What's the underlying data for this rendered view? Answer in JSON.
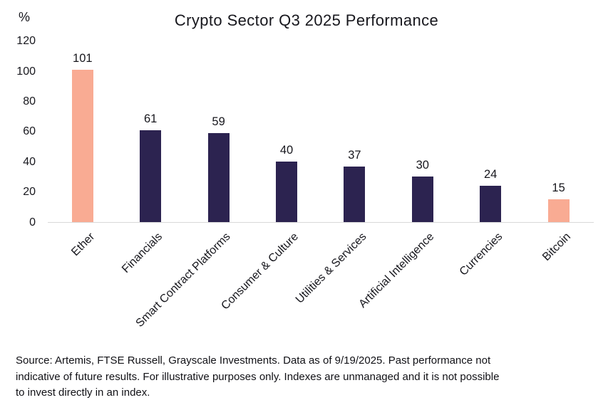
{
  "chart_data": {
    "type": "bar",
    "title": "Crypto Sector Q3 2025 Performance",
    "ylabel": "%",
    "xlabel": "",
    "categories": [
      "Ether",
      "Financials",
      "Smart Contract Platforms",
      "Consumer & Culture",
      "Utilities & Services",
      "Artificial Intelligence",
      "Currencies",
      "Bitcoin"
    ],
    "values": [
      101,
      61,
      59,
      40,
      37,
      30,
      24,
      15
    ],
    "bar_colors": [
      "#F9AB93",
      "#2C2350",
      "#2C2350",
      "#2C2350",
      "#2C2350",
      "#2C2350",
      "#2C2350",
      "#F9AB93"
    ],
    "yticks": [
      0,
      20,
      40,
      60,
      80,
      100,
      120
    ],
    "ylim": [
      0,
      120
    ],
    "grid": false,
    "legend_position": "none",
    "data_labels": true
  },
  "colors": {
    "accent_salmon": "#F9AB93",
    "primary_navy": "#2C2350",
    "axis_line": "#D9D9D9",
    "text": "#17171D"
  },
  "footer": {
    "source_lines": [
      "Source: Artemis, FTSE Russell, Grayscale Investments. Data as of 9/19/2025. Past performance not",
      "indicative of future results. For illustrative purposes only. Indexes are unmanaged and it is not possible",
      "to invest directly in an index."
    ]
  }
}
